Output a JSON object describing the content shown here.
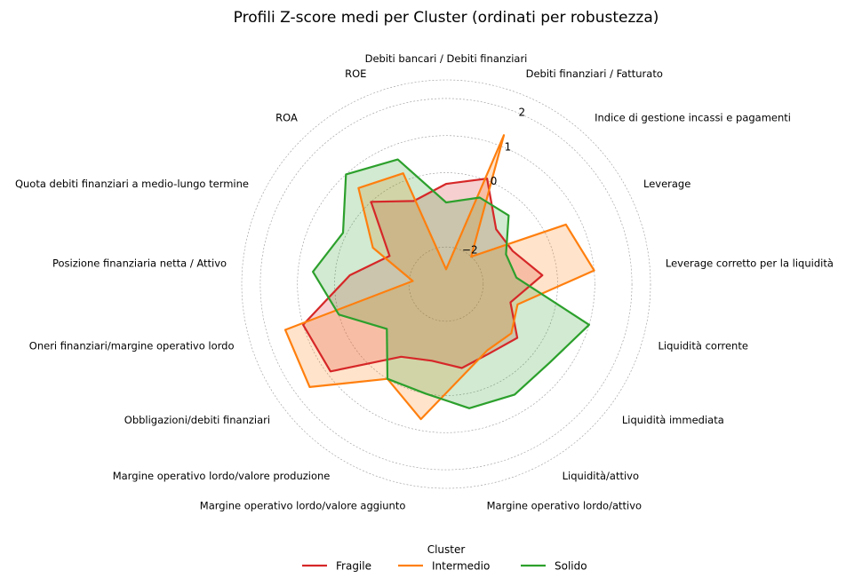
{
  "chart_data": {
    "type": "radar",
    "title": "Profili Z-score medi per Cluster (ordinati per robustezza)",
    "radial_ticks": [
      "−2",
      "0",
      "1",
      "2"
    ],
    "radial_tick_values": [
      -2,
      0,
      1,
      2
    ],
    "rlim": [
      -3,
      2.5
    ],
    "grid": true,
    "axes": [
      "Debiti bancari / Debiti finanziari",
      "Debiti finanziari / Fatturato",
      "Indice di gestione incassi e pagamenti",
      "Leverage",
      "Leverage corretto per la liquidità",
      "Liquidità corrente",
      "Liquidità immediata",
      "Liquidità/attivo",
      "Margine operativo lordo/attivo",
      "Margine operativo lordo/valore aggiunto",
      "Margine operativo lordo/valore produzione",
      "Obbligazioni/debiti finanziari",
      "Oneri finanziari/margine operativo lordo",
      "Posizione finanziaria netta / Attivo",
      "Quota debiti finanziari a medio-lungo termine",
      "ROA",
      "ROE"
    ],
    "series": [
      {
        "name": "Fragile",
        "color": "#d62728",
        "values": [
          -0.3,
          0.05,
          -1.0,
          -1.0,
          -0.4,
          -1.2,
          -0.6,
          -0.8,
          -0.7,
          -0.9,
          -0.7,
          0.9,
          1.0,
          -0.4,
          -1.3,
          0.0,
          -0.6
        ]
      },
      {
        "name": "Intermedio",
        "color": "#ff7f0e",
        "values": [
          -2.6,
          1.3,
          -2.0,
          0.6,
          1.0,
          -1.0,
          -0.8,
          -0.9,
          -0.5,
          0.7,
          0.0,
          1.6,
          1.5,
          -2.1,
          -0.8,
          0.5,
          0.2
        ]
      },
      {
        "name": "Solido",
        "color": "#2ca02c",
        "values": [
          -0.8,
          -0.5,
          -0.5,
          -1.2,
          -1.1,
          1.0,
          0.5,
          0.5,
          0.4,
          0.0,
          0.0,
          -1.0,
          0.0,
          0.6,
          0.1,
          1.0,
          0.6
        ]
      }
    ],
    "legend": {
      "title": "Cluster",
      "position": "bottom-center"
    }
  }
}
